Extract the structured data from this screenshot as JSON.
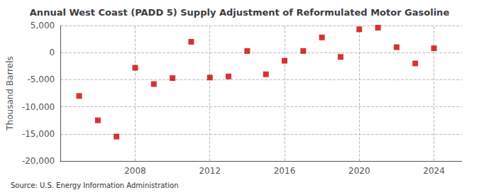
{
  "chart_data": {
    "type": "scatter",
    "title": "Annual West Coast (PADD 5) Supply Adjustment of Reformulated Motor Gasoline",
    "ylabel": "Thousand Barrels",
    "source": "Source: U.S. Energy Information Administration",
    "x": [
      2005,
      2006,
      2007,
      2008,
      2009,
      2010,
      2011,
      2012,
      2013,
      2014,
      2015,
      2016,
      2017,
      2018,
      2019,
      2020,
      2021,
      2022,
      2023,
      2024
    ],
    "values": [
      -8000,
      -12500,
      -15500,
      -2800,
      -5800,
      -4700,
      2000,
      -4600,
      -4400,
      300,
      -4000,
      -1500,
      300,
      2800,
      -800,
      4300,
      4600,
      1000,
      -2000,
      800
    ],
    "color": "#cc0000",
    "marker": "square",
    "xlim": [
      2004.0,
      2025.5
    ],
    "xticks": [
      2008,
      2012,
      2016,
      2020,
      2024
    ],
    "ylim": [
      -20000,
      5000
    ],
    "yticks": [
      {
        "value": -20000,
        "label": "-20,000"
      },
      {
        "value": -15000,
        "label": "-15,000"
      },
      {
        "value": -10000,
        "label": "-10,000"
      },
      {
        "value": -5000,
        "label": "-5,000"
      },
      0,
      {
        "value": 5000,
        "label": "5,000"
      }
    ],
    "grid": true
  }
}
